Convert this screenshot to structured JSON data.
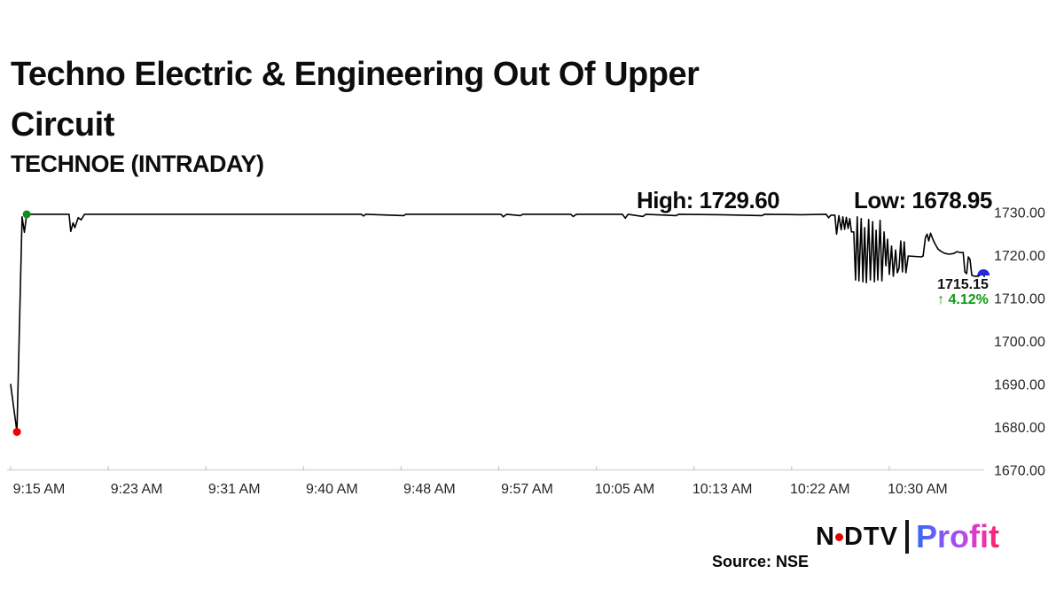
{
  "header": {
    "title_line1": "Techno Electric & Engineering Out Of Upper",
    "title_line2": "Circuit",
    "subtitle": "TECHNOE (INTRADAY)"
  },
  "annotations": {
    "high_label": "High: 1729.60",
    "low_label": "Low: 1678.95",
    "last_price": "1715.15",
    "change_arrow": "↑",
    "change_pct": "4.12%",
    "change_color": "#0e9a12"
  },
  "footer": {
    "source": "Source: NSE",
    "logo": {
      "ndtv_n": "N",
      "ndtv_dtv": "DTV",
      "profit": "Profit",
      "dot_color": "#e60000",
      "profit_gradient": [
        "#2f6df4",
        "#7e57f6",
        "#b44bee",
        "#ef32b4",
        "#fa2161"
      ]
    }
  },
  "chart_data": {
    "type": "line",
    "title": "TECHNOE (INTRADAY)",
    "xlabel": "",
    "ylabel": "",
    "x_unit": "minutes since 9:15 AM",
    "x_tick_labels": [
      "9:15 AM",
      "9:23 AM",
      "9:31 AM",
      "9:40 AM",
      "9:48 AM",
      "9:57 AM",
      "10:05 AM",
      "10:13 AM",
      "10:22 AM",
      "10:30 AM"
    ],
    "y_tick_labels": [
      "1730.00",
      "1720.00",
      "1710.00",
      "1700.00",
      "1690.00",
      "1680.00",
      "1670.00"
    ],
    "y_tick_values": [
      1730,
      1720,
      1710,
      1700,
      1690,
      1680,
      1670
    ],
    "ylim": [
      1670,
      1732
    ],
    "grid": false,
    "legend": "none",
    "line_color": "#000000",
    "axis_color": "#d9d9d9",
    "tick_text_color": "#262626",
    "high": 1729.6,
    "low": 1678.95,
    "last": 1715.15,
    "change_pct": 4.12,
    "markers": {
      "open": {
        "x": 1.4,
        "value": 1729.6,
        "color": "#0f8f17"
      },
      "low": {
        "x": 0.55,
        "value": 1678.95,
        "color": "#f20000"
      },
      "last": {
        "x": 85.0,
        "value": 1715.15,
        "color": "#2727dd"
      }
    },
    "points": [
      [
        0,
        1690.0
      ],
      [
        0.55,
        1678.95
      ],
      [
        1.0,
        1729.0
      ],
      [
        1.2,
        1725.4
      ],
      [
        1.4,
        1729.6
      ],
      [
        5.1,
        1729.6
      ],
      [
        5.25,
        1725.6
      ],
      [
        5.45,
        1727.6
      ],
      [
        5.6,
        1726.5
      ],
      [
        5.9,
        1728.8
      ],
      [
        6.15,
        1728.3
      ],
      [
        6.45,
        1729.6
      ],
      [
        10,
        1729.6
      ],
      [
        20,
        1729.6
      ],
      [
        30.6,
        1729.6
      ],
      [
        30.8,
        1729.2
      ],
      [
        31.0,
        1729.6
      ],
      [
        34.3,
        1729.3
      ],
      [
        34.5,
        1729.6
      ],
      [
        42.8,
        1729.6
      ],
      [
        43.0,
        1729.0
      ],
      [
        43.3,
        1729.6
      ],
      [
        44.5,
        1729.3
      ],
      [
        44.7,
        1729.6
      ],
      [
        48.9,
        1729.6
      ],
      [
        49.1,
        1729.1
      ],
      [
        49.4,
        1729.6
      ],
      [
        53.4,
        1729.6
      ],
      [
        53.65,
        1728.7
      ],
      [
        53.9,
        1729.6
      ],
      [
        55.2,
        1729.1
      ],
      [
        55.45,
        1729.6
      ],
      [
        58.1,
        1729.3
      ],
      [
        58.3,
        1729.6
      ],
      [
        62,
        1729.5
      ],
      [
        65.6,
        1729.3
      ],
      [
        65.8,
        1729.6
      ],
      [
        69,
        1729.5
      ],
      [
        71.2,
        1729.6
      ],
      [
        71.4,
        1728.8
      ],
      [
        71.6,
        1729.4
      ],
      [
        71.95,
        1729.4
      ],
      [
        72.1,
        1725.0
      ],
      [
        72.3,
        1729.3
      ],
      [
        72.5,
        1726.0
      ],
      [
        72.65,
        1729.0
      ],
      [
        72.8,
        1726.1
      ],
      [
        72.95,
        1728.9
      ],
      [
        73.1,
        1726.3
      ],
      [
        73.25,
        1728.6
      ],
      [
        73.4,
        1725.5
      ],
      [
        73.6,
        1725.5
      ],
      [
        73.75,
        1714.3
      ],
      [
        73.9,
        1729.0
      ],
      [
        74.05,
        1714.1
      ],
      [
        74.25,
        1728.6
      ],
      [
        74.4,
        1713.9
      ],
      [
        74.55,
        1726.5
      ],
      [
        74.7,
        1713.7
      ],
      [
        74.9,
        1728.4
      ],
      [
        75.05,
        1714.3
      ],
      [
        75.25,
        1727.9
      ],
      [
        75.4,
        1713.9
      ],
      [
        75.55,
        1725.9
      ],
      [
        75.7,
        1714.3
      ],
      [
        75.9,
        1728.2
      ],
      [
        76.05,
        1714.1
      ],
      [
        76.25,
        1725.5
      ],
      [
        76.4,
        1717.6
      ],
      [
        76.55,
        1723.8
      ],
      [
        76.7,
        1715.6
      ],
      [
        76.9,
        1722.2
      ],
      [
        77.05,
        1715.2
      ],
      [
        77.25,
        1721.3
      ],
      [
        77.4,
        1716.0
      ],
      [
        77.55,
        1717.0
      ],
      [
        77.7,
        1723.4
      ],
      [
        77.85,
        1716.2
      ],
      [
        78.0,
        1723.2
      ],
      [
        78.15,
        1716.0
      ],
      [
        78.35,
        1719.9
      ],
      [
        79.5,
        1719.7
      ],
      [
        79.65,
        1719.9
      ],
      [
        79.85,
        1724.2
      ],
      [
        80.0,
        1725.0
      ],
      [
        80.15,
        1723.4
      ],
      [
        80.3,
        1725.2
      ],
      [
        80.5,
        1723.8
      ],
      [
        80.7,
        1722.7
      ],
      [
        80.95,
        1721.5
      ],
      [
        81.25,
        1720.9
      ],
      [
        81.55,
        1720.5
      ],
      [
        81.95,
        1720.3
      ],
      [
        82.35,
        1720.5
      ],
      [
        82.6,
        1720.9
      ],
      [
        82.9,
        1720.7
      ],
      [
        83.15,
        1720.7
      ],
      [
        83.3,
        1716.2
      ],
      [
        83.45,
        1715.8
      ],
      [
        83.6,
        1719.7
      ],
      [
        83.75,
        1719.1
      ],
      [
        83.9,
        1715.4
      ],
      [
        84.1,
        1715.2
      ],
      [
        84.5,
        1715.2
      ],
      [
        84.7,
        1715.6
      ],
      [
        84.9,
        1715.5
      ],
      [
        85.0,
        1715.15
      ]
    ]
  }
}
